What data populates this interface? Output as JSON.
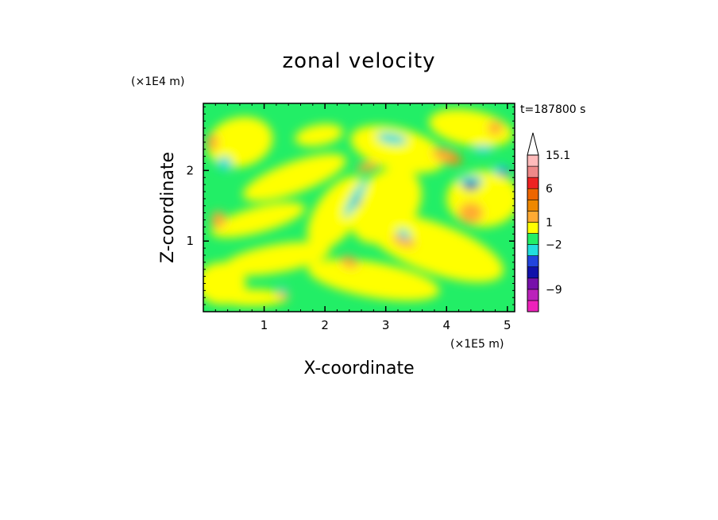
{
  "chart_data": {
    "type": "heatmap",
    "title": "zonal velocity",
    "xlabel": "X-coordinate",
    "ylabel": "Z-coordinate",
    "x_multiplier_label": "(×1E5 m)",
    "y_multiplier_label": "(×1E4 m)",
    "time_label": "t=187800 s",
    "xlim": [
      0,
      5.12
    ],
    "ylim": [
      0,
      2.95
    ],
    "x_ticks": [
      "1",
      "2",
      "3",
      "4",
      "5"
    ],
    "x_tick_values": [
      1,
      2,
      3,
      4,
      5
    ],
    "y_ticks": [
      "1",
      "2"
    ],
    "y_tick_values": [
      1,
      2
    ],
    "colorbar": {
      "labels": [
        {
          "text": "15.1",
          "value": 15.1
        },
        {
          "text": "6",
          "value": 6
        },
        {
          "text": "1",
          "value": 1
        },
        {
          "text": "−2",
          "value": -2
        },
        {
          "text": "−9",
          "value": -9
        }
      ],
      "levels": [
        {
          "min": -15.1,
          "max": -12,
          "color": "#ee22bb"
        },
        {
          "min": -12,
          "max": -9,
          "color": "#bb22bb"
        },
        {
          "min": -9,
          "max": -6,
          "color": "#7711aa"
        },
        {
          "min": -6,
          "max": -4,
          "color": "#1111aa"
        },
        {
          "min": -4,
          "max": -3,
          "color": "#2244dd"
        },
        {
          "min": -3,
          "max": -2,
          "color": "#22dddd"
        },
        {
          "min": -2,
          "max": 0,
          "color": "#22ee66"
        },
        {
          "min": 0,
          "max": 1,
          "color": "#ffff00"
        },
        {
          "min": 1,
          "max": 2,
          "color": "#ffaa33"
        },
        {
          "min": 2,
          "max": 3,
          "color": "#ee8800"
        },
        {
          "min": 3,
          "max": 6,
          "color": "#ee6600"
        },
        {
          "min": 6,
          "max": 9,
          "color": "#ee2222"
        },
        {
          "min": 9,
          "max": 12,
          "color": "#ee8888"
        },
        {
          "min": 12,
          "max": 15.1,
          "color": "#ffbbbb"
        }
      ],
      "extend_max_color": "#ffffff"
    }
  }
}
